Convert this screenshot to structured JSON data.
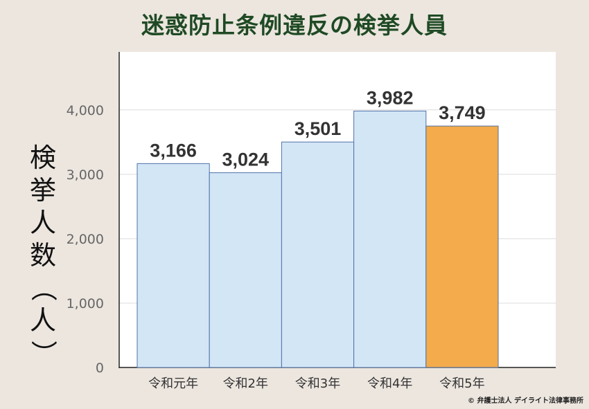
{
  "title": "迷惑防止条例違反の検挙人員",
  "copyright": "© 弁護士法人 デイライト法律事務所",
  "colors": {
    "bar": "#d3e6f6",
    "bar_highlight": "#f3ab4b",
    "bar_stroke": "#4f72a8",
    "title": "#1f4a24"
  },
  "chart_data": {
    "type": "bar",
    "title": "迷惑防止条例違反の検挙人員",
    "ylabel": "検挙人数（人）",
    "categories": [
      "令和元年",
      "令和2年",
      "令和3年",
      "令和4年",
      "令和5年"
    ],
    "values": [
      3166,
      3024,
      3501,
      3982,
      3749
    ],
    "data_labels": [
      "3,166",
      "3,024",
      "3,501",
      "3,982",
      "3,749"
    ],
    "highlight_index": 4,
    "ylim": [
      0,
      4900
    ],
    "yticks": [
      0,
      1000,
      2000,
      3000,
      4000
    ],
    "ytick_labels": [
      "0",
      "1,000",
      "2,000",
      "3,000",
      "4,000"
    ],
    "grid": true
  }
}
